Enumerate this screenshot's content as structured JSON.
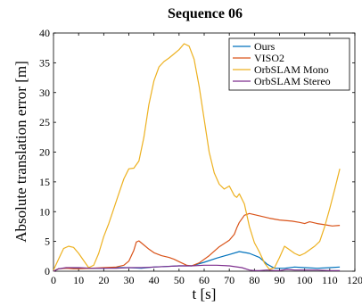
{
  "chart_data": {
    "type": "line",
    "title": "Sequence 06",
    "xlabel": "t [s]",
    "ylabel": "Absolute translation error [m]",
    "xlim": [
      0,
      120
    ],
    "ylim": [
      0,
      40
    ],
    "xticks": [
      "0",
      "10",
      "20",
      "30",
      "40",
      "50",
      "60",
      "70",
      "80",
      "90",
      "100",
      "110",
      "120"
    ],
    "yticks": [
      "0",
      "5",
      "10",
      "15",
      "20",
      "25",
      "30",
      "35",
      "40"
    ],
    "grid": false,
    "legend_position": "top-right",
    "series": [
      {
        "name": "Ours",
        "color": "#0072BD",
        "x": [
          0,
          2,
          5,
          10,
          15,
          20,
          25,
          30,
          35,
          40,
          45,
          50,
          55,
          60,
          65,
          70,
          74,
          78,
          82,
          85,
          88,
          92,
          96,
          100,
          105,
          110,
          114
        ],
        "y": [
          0.0,
          0.4,
          0.5,
          0.5,
          0.5,
          0.5,
          0.6,
          0.6,
          0.5,
          0.7,
          0.8,
          0.9,
          0.9,
          1.5,
          2.2,
          2.8,
          3.3,
          3.0,
          2.3,
          1.2,
          0.5,
          0.5,
          0.7,
          0.6,
          0.5,
          0.6,
          0.7
        ]
      },
      {
        "name": "VISO2",
        "color": "#D95319",
        "x": [
          0,
          2,
          5,
          8,
          10,
          15,
          20,
          25,
          28,
          30,
          32,
          33,
          34,
          36,
          38,
          40,
          43,
          46,
          48,
          50,
          53,
          55,
          58,
          62,
          66,
          70,
          72,
          73,
          74,
          76,
          78,
          82,
          86,
          90,
          95,
          98,
          100,
          102,
          105,
          108,
          111,
          114
        ],
        "y": [
          0.0,
          0.4,
          0.5,
          0.4,
          0.4,
          0.5,
          0.6,
          0.7,
          1.0,
          1.7,
          3.5,
          4.9,
          5.1,
          4.4,
          3.7,
          3.1,
          2.6,
          2.3,
          2.0,
          1.6,
          1.0,
          0.9,
          1.4,
          2.6,
          4.1,
          5.2,
          6.2,
          7.3,
          8.2,
          9.4,
          9.7,
          9.3,
          8.9,
          8.6,
          8.4,
          8.2,
          8.0,
          8.3,
          8.0,
          7.8,
          7.6,
          7.7
        ]
      },
      {
        "name": "OrbSLAM Mono",
        "color": "#EDB120",
        "x": [
          0,
          2,
          4,
          6,
          8,
          10,
          12,
          14,
          16,
          18,
          20,
          22,
          24,
          26,
          28,
          30,
          32,
          34,
          36,
          38,
          40,
          42,
          44,
          46,
          48,
          50,
          52,
          54,
          56,
          58,
          60,
          62,
          64,
          66,
          68,
          70,
          72,
          73,
          74,
          76,
          78,
          80,
          82,
          84,
          86,
          88,
          90,
          92,
          94,
          96,
          98,
          100,
          102,
          104,
          106,
          108,
          110,
          112,
          114
        ],
        "y": [
          0.2,
          2.0,
          3.8,
          4.2,
          4.0,
          3.0,
          1.8,
          0.6,
          1.0,
          3.0,
          5.8,
          8.0,
          10.5,
          13.0,
          15.5,
          17.2,
          17.3,
          18.5,
          22.5,
          28.0,
          32.0,
          34.3,
          35.2,
          35.8,
          36.5,
          37.2,
          38.2,
          37.8,
          35.6,
          31.0,
          25.5,
          20.0,
          16.5,
          14.6,
          13.8,
          14.3,
          12.7,
          12.4,
          13.0,
          11.3,
          7.5,
          4.8,
          3.2,
          1.4,
          0.3,
          0.6,
          2.3,
          4.2,
          3.6,
          3.0,
          2.6,
          3.0,
          3.6,
          4.2,
          5.0,
          7.5,
          10.5,
          13.8,
          17.2
        ]
      },
      {
        "name": "OrbSLAM Stereo",
        "color": "#7E2F8E",
        "x": [
          0,
          2,
          5,
          10,
          15,
          20,
          25,
          30,
          35,
          40,
          45,
          50,
          55,
          60,
          65,
          70,
          75,
          78,
          80,
          82,
          85,
          88,
          90,
          93,
          96,
          100,
          105,
          110,
          114
        ],
        "y": [
          0.0,
          0.4,
          0.6,
          0.6,
          0.5,
          0.5,
          0.5,
          0.6,
          0.6,
          0.7,
          0.8,
          0.9,
          0.9,
          1.0,
          1.0,
          0.9,
          0.6,
          0.2,
          0.1,
          0.1,
          0.2,
          0.1,
          0.1,
          0.3,
          0.2,
          0.2,
          0.2,
          0.1,
          0.1
        ]
      }
    ]
  }
}
